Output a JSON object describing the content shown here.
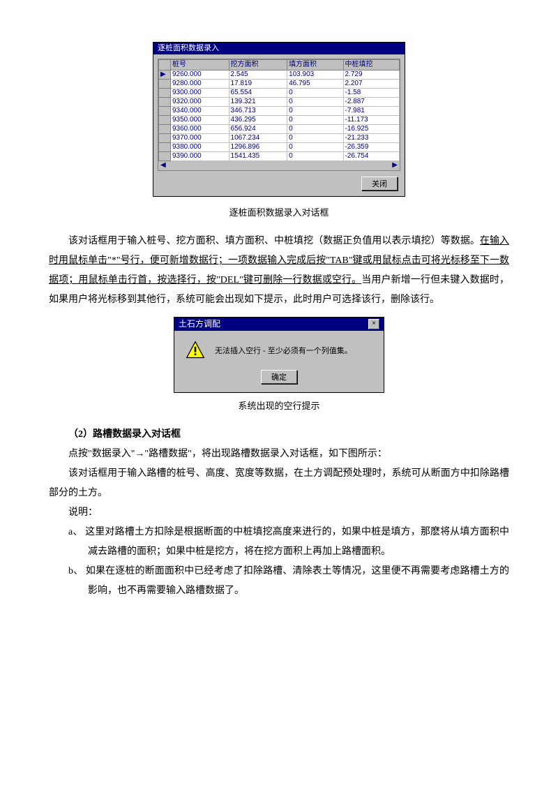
{
  "dialog1": {
    "title": "逐桩面积数据录入",
    "columns": [
      "桩号",
      "挖方面积",
      "填方面积",
      "中桩填挖"
    ],
    "rows": [
      [
        "9260.000",
        "2.545",
        "103.903",
        "2.729"
      ],
      [
        "9280.000",
        "17.819",
        "46.795",
        "2.207"
      ],
      [
        "9300.000",
        "65.554",
        "0",
        "-1.58"
      ],
      [
        "9320.000",
        "139.321",
        "0",
        "-2.887"
      ],
      [
        "9340.000",
        "346.713",
        "0",
        "-7.981"
      ],
      [
        "9350.000",
        "436.295",
        "0",
        "-11.173"
      ],
      [
        "9360.000",
        "656.924",
        "0",
        "-16.925"
      ],
      [
        "9370.000",
        "1067.234",
        "0",
        "-21.233"
      ],
      [
        "9380.000",
        "1296.896",
        "0",
        "-26.359"
      ],
      [
        "9390.000",
        "1541.435",
        "0",
        "-26.754"
      ]
    ],
    "close_label": "关闭"
  },
  "caption1": "逐桩面积数据录入对话框",
  "para1a": "该对话框用于输入桩号、挖方面积、填方面积、中桩填挖（数据正负值用以表示填挖）等数据。",
  "para1b": "在输入时用鼠标单击\"*\"号行，便可新增数据行；一项数据输入完成后按\"TAB\"键或用鼠标点击可将光标移至下一数据项；用鼠标单击行首，按选择行，按\"DEL\"键可删除一行数据或空行。",
  "para1c": "当用户新增一行但未键入数据时，如果用户将光标移到其他行，系统可能会出现如下提示，此时用户可选择该行，删除该行。",
  "dialog2": {
    "title": "土石方调配",
    "message": "无法插入空行 - 至少必须有一个列值集。",
    "ok_label": "确定"
  },
  "caption2": "系统出现的空行提示",
  "section2_title": "（2）路槽数据录入对话框",
  "para2a": "点按\"数据录入\"→\"路槽数据\"，将出现路槽数据录入对话框，如下图所示：",
  "para2b": "该对话框用于输入路槽的桩号、高度、宽度等数据，在土方调配预处理时，系统可从断面方中扣除路槽部分的土方。",
  "para2c": "说明：",
  "item_a": "a、 这里对路槽土方扣除是根据断面的中桩填挖高度来进行的，如果中桩是填方，那麽将从填方面积中减去路槽的面积；如果中桩是挖方，将在挖方面积上再加上路槽面积。",
  "item_b": "b、 如果在逐桩的断面面积中已经考虑了扣除路槽、清除表土等情况，这里便不再需要考虑路槽土方的影响，也不再需要输入路槽数据了。",
  "colors": {
    "titlebar_bg": "#000080",
    "dialog_bg": "#c0c0c0",
    "cell_text": "#000080",
    "page_bg": "#ffffff"
  }
}
